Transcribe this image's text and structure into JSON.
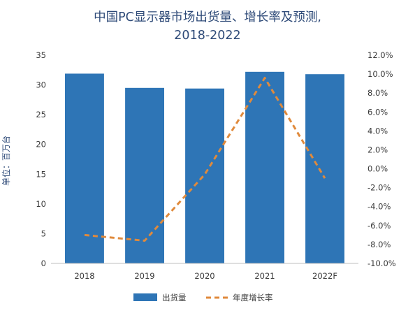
{
  "chart_data": {
    "type": "bar",
    "title_lines": [
      "中国PC显示器市场出货量、增长率及预测,",
      "2018-2022"
    ],
    "categories": [
      "2018",
      "2019",
      "2020",
      "2021",
      "2022F"
    ],
    "series": [
      {
        "name": "出货量",
        "type": "bar",
        "axis": "left",
        "values": [
          31.9,
          29.5,
          29.4,
          32.2,
          31.8
        ],
        "color": "#2e75b6"
      },
      {
        "name": "年度增长率",
        "type": "line",
        "axis": "right",
        "values": [
          -7.0,
          -7.6,
          -0.6,
          9.6,
          -1.0
        ],
        "color": "#e08a3c",
        "dashed": true
      }
    ],
    "ylabel": "单位：百万台",
    "ylim": [
      0,
      35
    ],
    "yticks": [
      "0",
      "5",
      "10",
      "15",
      "20",
      "25",
      "30",
      "35"
    ],
    "y2lim": [
      -10,
      12
    ],
    "y2ticks": [
      "-10.0%",
      "-8.0%",
      "-6.0%",
      "-4.0%",
      "-2.0%",
      "0.0%",
      "2.0%",
      "4.0%",
      "6.0%",
      "8.0%",
      "10.0%",
      "12.0%"
    ],
    "grid": false,
    "legend": {
      "position": "bottom",
      "entries": [
        "出货量",
        "年度增长率"
      ]
    }
  }
}
